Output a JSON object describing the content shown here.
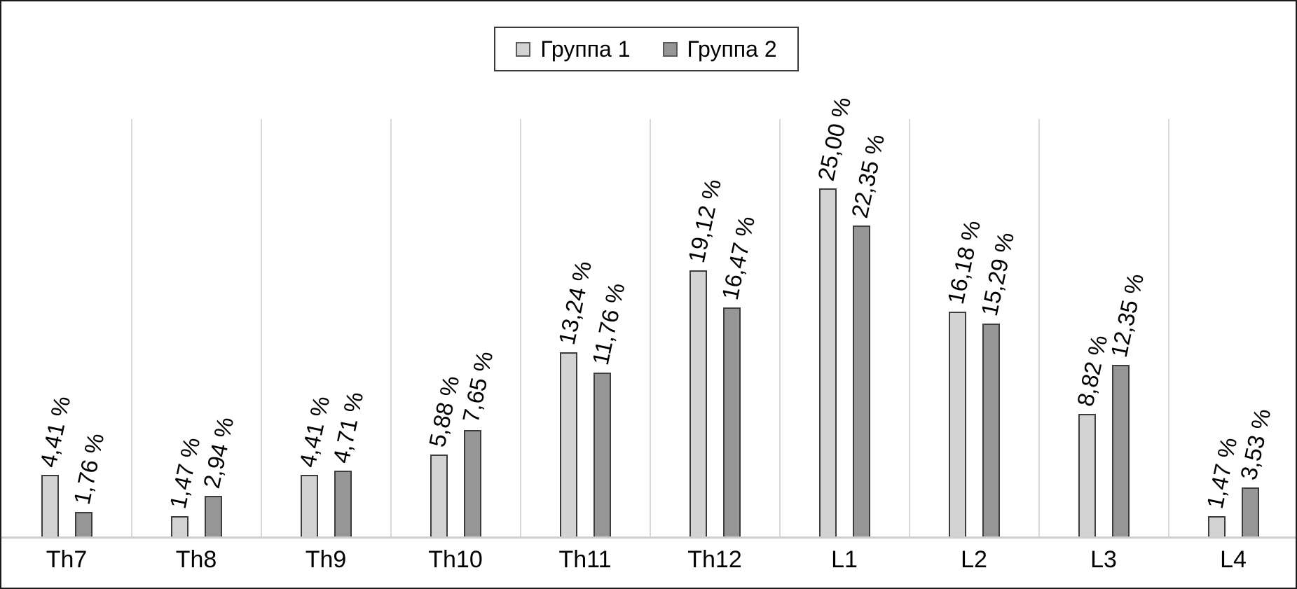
{
  "legend": {
    "items": [
      {
        "label": "Группа 1",
        "swatch": "light-gray-square"
      },
      {
        "label": "Группа 2",
        "swatch": "dark-gray-square"
      }
    ]
  },
  "colors": {
    "series1_fill": "#d3d3d3",
    "series2_fill": "#969696",
    "bar_border": "#3d3d3d",
    "separator": "#d9d9d9",
    "baseline": "#cfcfcf",
    "frame": "#1c1c1c",
    "text": "#000000"
  },
  "chart_data": {
    "type": "bar",
    "title": "",
    "xlabel": "",
    "ylabel": "",
    "ylim": [
      0,
      30
    ],
    "grid": "vertical-category-separators",
    "legend_position": "top-center",
    "value_labels": "rotated, above bars, percent with comma decimals",
    "categories": [
      "Th7",
      "Th8",
      "Th9",
      "Th10",
      "Th11",
      "Th12",
      "L1",
      "L2",
      "L3",
      "L4"
    ],
    "series": [
      {
        "name": "Группа 1",
        "values": [
          4.41,
          1.47,
          4.41,
          5.88,
          13.24,
          19.12,
          25.0,
          16.18,
          8.82,
          1.47
        ],
        "labels": [
          "4,41 %",
          "1,47 %",
          "4,41 %",
          "5,88 %",
          "13,24 %",
          "19,12 %",
          "25,00 %",
          "16,18 %",
          "8,82 %",
          "1,47 %"
        ]
      },
      {
        "name": "Группа 2",
        "values": [
          1.76,
          2.94,
          4.71,
          7.65,
          11.76,
          16.47,
          22.35,
          15.29,
          12.35,
          3.53
        ],
        "labels": [
          "1,76 %",
          "2,94 %",
          "4,71 %",
          "7,65 %",
          "11,76 %",
          "16,47 %",
          "22,35 %",
          "15,29 %",
          "12,35 %",
          "3,53 %"
        ]
      }
    ]
  }
}
